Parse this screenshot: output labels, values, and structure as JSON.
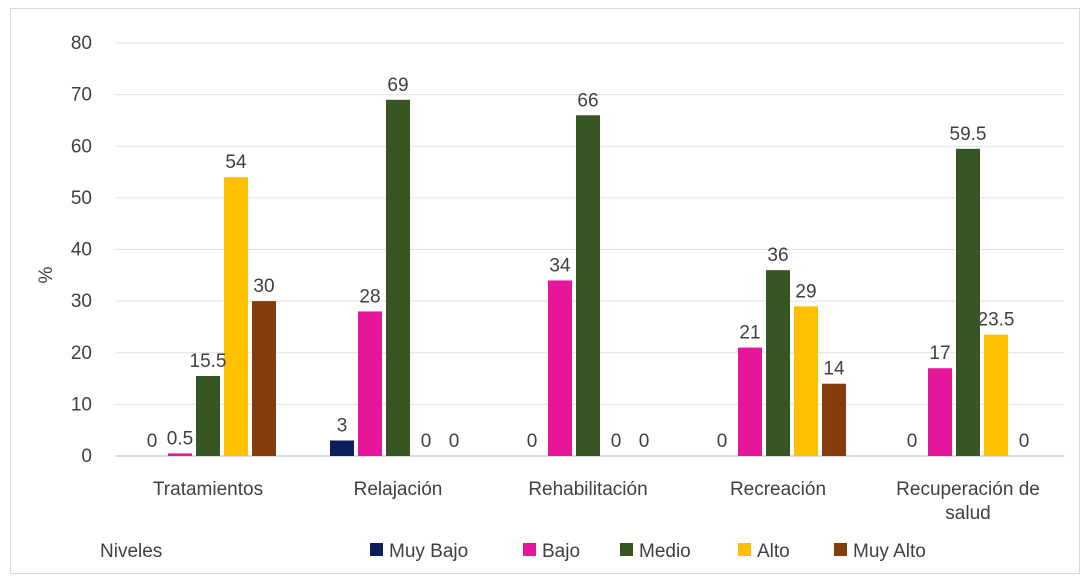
{
  "chart_data": {
    "type": "bar",
    "ylabel": "%",
    "ylim": [
      0,
      80
    ],
    "yticks": [
      0,
      10,
      20,
      30,
      40,
      50,
      60,
      70,
      80
    ],
    "grid": true,
    "legend_title": "Niveles",
    "legend_position": "bottom",
    "categories": [
      [
        "Tratamientos"
      ],
      [
        "Relajación"
      ],
      [
        "Rehabilitación"
      ],
      [
        "Recreación"
      ],
      [
        "Recuperación de",
        "salud"
      ]
    ],
    "series": [
      {
        "name": "Muy Bajo",
        "color": "#0a1f5c",
        "values": [
          0,
          3,
          0,
          0,
          0
        ]
      },
      {
        "name": "Bajo",
        "color": "#e6169a",
        "values": [
          0.5,
          28,
          34,
          21,
          17
        ]
      },
      {
        "name": "Medio",
        "color": "#375623",
        "values": [
          15.5,
          69,
          66,
          36,
          59.5
        ]
      },
      {
        "name": "Alto",
        "color": "#ffc000",
        "values": [
          54,
          0,
          0,
          29,
          23.5
        ]
      },
      {
        "name": "Muy Alto",
        "color": "#843c0c",
        "values": [
          30,
          0,
          0,
          14,
          0
        ]
      }
    ]
  }
}
